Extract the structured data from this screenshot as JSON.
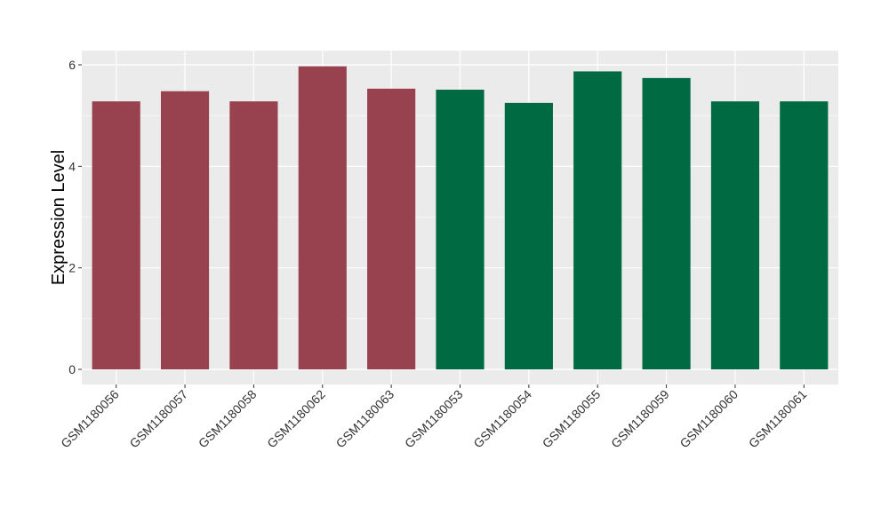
{
  "chart_data": {
    "type": "bar",
    "title": "",
    "xlabel": "",
    "ylabel": "Expression Level",
    "ylim": [
      0,
      6.25
    ],
    "yticks": [
      0,
      2,
      4,
      6
    ],
    "grid": true,
    "legend": "none",
    "panel_background": "#ebebeb",
    "grid_color": "#ffffff",
    "categories": [
      "GSM1180056",
      "GSM1180057",
      "GSM1180058",
      "GSM1180062",
      "GSM1180063",
      "GSM1180053",
      "GSM1180054",
      "GSM1180055",
      "GSM1180059",
      "GSM1180060",
      "GSM1180061"
    ],
    "values": [
      5.28,
      5.48,
      5.28,
      5.97,
      5.53,
      5.51,
      5.25,
      5.87,
      5.74,
      5.28,
      5.28
    ],
    "bar_colors": [
      "#99424f",
      "#99424f",
      "#99424f",
      "#99424f",
      "#99424f",
      "#006a43",
      "#006a43",
      "#006a43",
      "#006a43",
      "#006a43",
      "#006a43"
    ]
  }
}
